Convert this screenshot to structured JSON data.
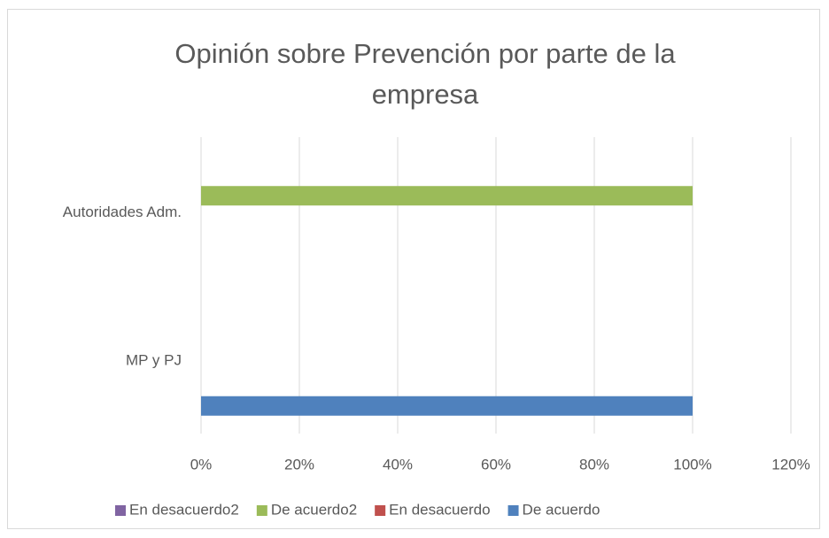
{
  "chart_data": {
    "type": "bar",
    "orientation": "horizontal",
    "title": "Opinión sobre Prevención por parte de la empresa",
    "categories": [
      "MP y PJ",
      "Autoridades Adm."
    ],
    "series": [
      {
        "name": "De acuerdo",
        "color": "#4f81bd",
        "values": [
          100,
          0
        ]
      },
      {
        "name": "En desacuerdo",
        "color": "#c0504d",
        "values": [
          0,
          0
        ]
      },
      {
        "name": "De acuerdo2",
        "color": "#9bbb59",
        "values": [
          0,
          100
        ]
      },
      {
        "name": "En desacuerdo2",
        "color": "#8064a2",
        "values": [
          0,
          0
        ]
      }
    ],
    "xlim": [
      0,
      120
    ],
    "xticks": [
      {
        "value": 0,
        "label": "0%"
      },
      {
        "value": 20,
        "label": "20%"
      },
      {
        "value": 40,
        "label": "40%"
      },
      {
        "value": 60,
        "label": "60%"
      },
      {
        "value": 80,
        "label": "80%"
      },
      {
        "value": 100,
        "label": "100%"
      },
      {
        "value": 120,
        "label": "120%"
      }
    ],
    "grid": true,
    "legend": "bottom"
  }
}
